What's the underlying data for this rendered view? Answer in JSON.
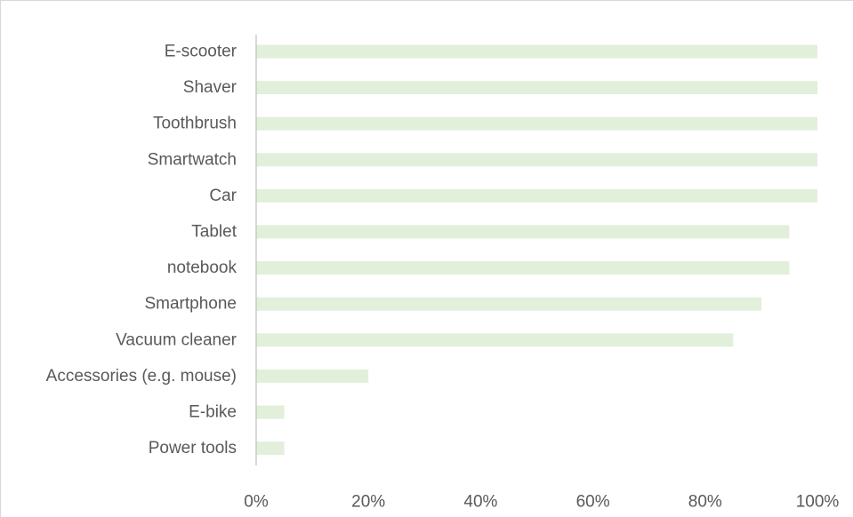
{
  "chart_data": {
    "type": "bar",
    "orientation": "horizontal",
    "categories": [
      "E-scooter",
      "Shaver",
      "Toothbrush",
      "Smartwatch",
      "Car",
      "Tablet",
      "notebook",
      "Smartphone",
      "Vacuum cleaner",
      "Accessories (e.g. mouse)",
      "E-bike",
      "Power tools"
    ],
    "values": [
      100,
      100,
      100,
      100,
      100,
      95,
      95,
      90,
      85,
      20,
      5,
      5
    ],
    "xlim": [
      0,
      100
    ],
    "x_ticks": [
      "0%",
      "20%",
      "40%",
      "60%",
      "80%",
      "100%"
    ],
    "title": "",
    "xlabel": "",
    "ylabel": "",
    "grid": false,
    "legend": "none",
    "colors": {
      "bar": "#e2efda",
      "axis": "#bfbfbf",
      "text": "#595959"
    }
  }
}
